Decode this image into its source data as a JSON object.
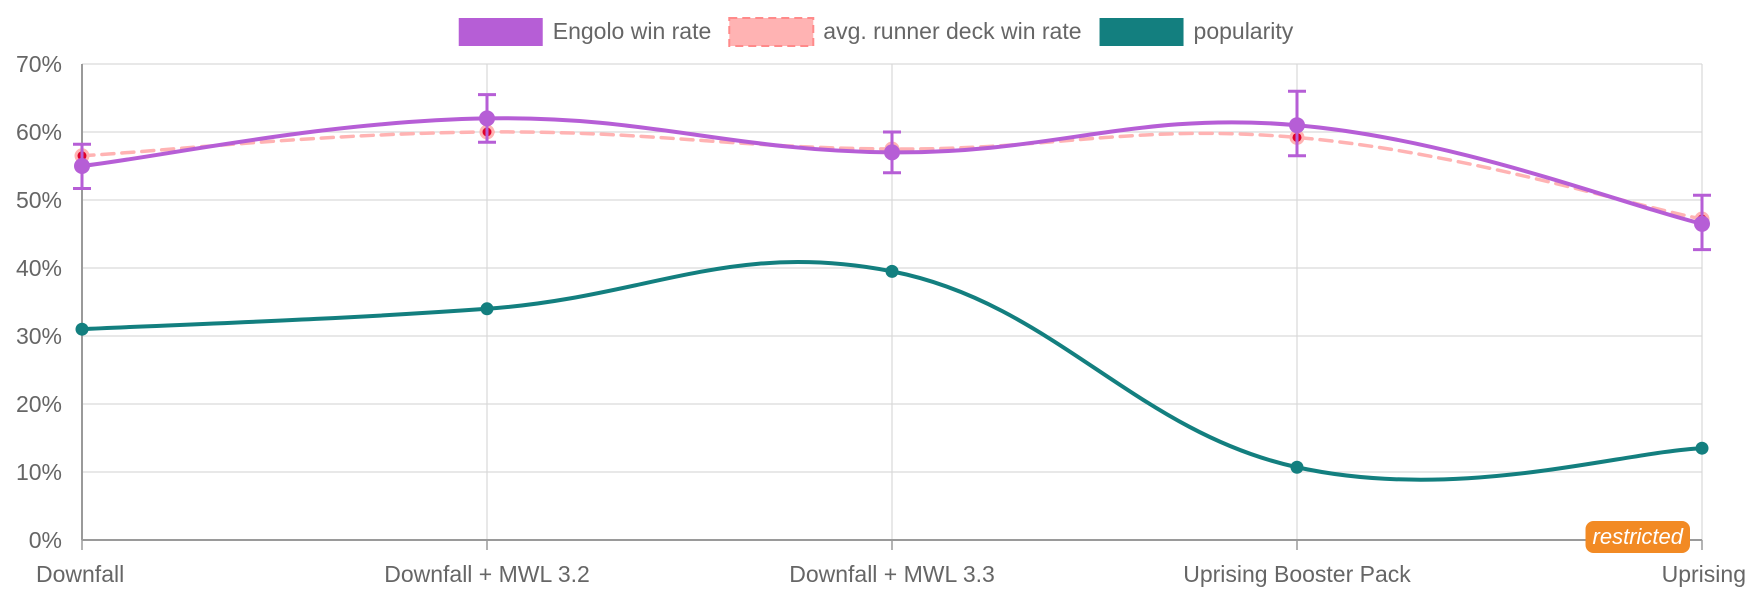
{
  "colors": {
    "engolo": "#b65ed6",
    "avg": "#ffb3b3",
    "avg_point": "#e0002a",
    "popularity": "#137f7f",
    "grid": "#d9d9d9",
    "axis": "#9a9a9a",
    "tick_text": "#666666",
    "badge_bg": "#f28a24",
    "badge_text": "#ffffff"
  },
  "chart_data": {
    "type": "line",
    "categories": [
      "Downfall",
      "Downfall + MWL 3.2",
      "Downfall + MWL 3.3",
      "Uprising Booster Pack",
      "Uprising"
    ],
    "y_ticks": [
      "0%",
      "10%",
      "20%",
      "30%",
      "40%",
      "50%",
      "60%",
      "70%"
    ],
    "ylim": [
      0,
      70
    ],
    "y_unit": "%",
    "grid": true,
    "legend_position": "top-center",
    "series": [
      {
        "name": "Engolo win rate",
        "color_key": "engolo",
        "style": "solid",
        "values": [
          55,
          62,
          57,
          61,
          46.5
        ],
        "error_bars": [
          [
            51.7,
            58.2
          ],
          [
            58.5,
            65.5
          ],
          [
            54,
            60
          ],
          [
            56.5,
            66
          ],
          [
            42.7,
            50.7
          ]
        ]
      },
      {
        "name": "avg. runner deck win rate",
        "color_key": "avg",
        "style": "dashed",
        "values": [
          56.5,
          60,
          57.5,
          59.2,
          47.2
        ]
      },
      {
        "name": "popularity",
        "color_key": "popularity",
        "style": "solid",
        "values": [
          31,
          34,
          39.5,
          10.7,
          13.5
        ]
      }
    ],
    "annotations": [
      {
        "text": "restricted",
        "category": "Uprising",
        "style": "badge"
      }
    ]
  }
}
